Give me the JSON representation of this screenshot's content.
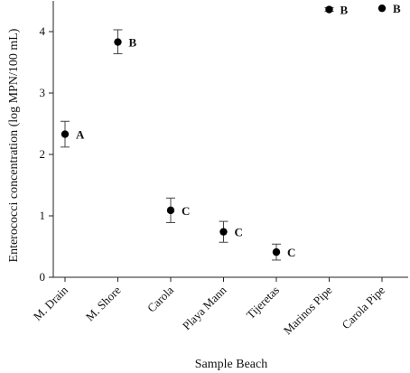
{
  "chart_data": {
    "type": "scatter",
    "xlabel": "Sample Beach",
    "ylabel": "Enterococci concentration (log MPN/100 mL)",
    "ylim": [
      0,
      4.5
    ],
    "y_ticks": [
      "0",
      "1",
      "2",
      "3",
      "4"
    ],
    "grid": false,
    "legend": "none",
    "error_bars": true,
    "marker_color": "#000000",
    "points": [
      {
        "category": "M. Drain",
        "value": 2.33,
        "err_low": 2.12,
        "err_high": 2.54,
        "group": "A"
      },
      {
        "category": "M. Shore",
        "value": 3.83,
        "err_low": 3.64,
        "err_high": 4.03,
        "group": "B"
      },
      {
        "category": "Carola",
        "value": 1.09,
        "err_low": 0.89,
        "err_high": 1.29,
        "group": "C"
      },
      {
        "category": "Playa Mann",
        "value": 0.74,
        "err_low": 0.57,
        "err_high": 0.91,
        "group": "C"
      },
      {
        "category": "Tijeretas",
        "value": 0.41,
        "err_low": 0.28,
        "err_high": 0.54,
        "group": "C"
      },
      {
        "category": "Marinos Pipe",
        "value": 4.36,
        "err_low": 4.33,
        "err_high": 4.39,
        "group": "B"
      },
      {
        "category": "Carola Pipe",
        "value": 4.38,
        "err_low": 4.38,
        "err_high": 4.38,
        "group": "B"
      }
    ]
  }
}
